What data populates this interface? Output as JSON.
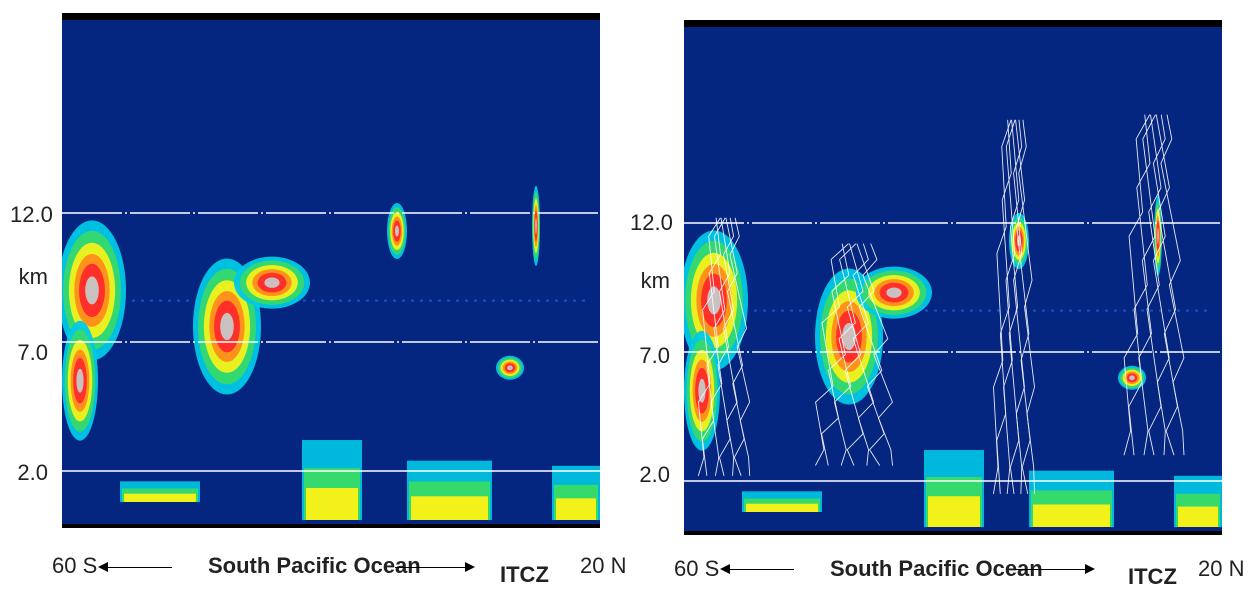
{
  "chart_data": [
    {
      "type": "heatmap",
      "panel": "left",
      "ylabel": "km",
      "y_ticks": [
        "12.0",
        "7.0",
        "2.0"
      ],
      "y_tick_values": [
        12.0,
        7.0,
        2.0
      ],
      "xaxis": {
        "left": "60 S",
        "middle": "South Pacific Ocean",
        "itcz": "ITCZ",
        "right": "20 N"
      },
      "grid": true,
      "overlay_contours": false
    },
    {
      "type": "heatmap",
      "panel": "right",
      "ylabel": "km",
      "y_ticks": [
        "12.0",
        "7.0",
        "2.0"
      ],
      "y_tick_values": [
        12.0,
        7.0,
        2.0
      ],
      "xaxis": {
        "left": "60 S",
        "middle": "South Pacific Ocean",
        "itcz": "ITCZ",
        "right": "20 N"
      },
      "grid": true,
      "overlay_contours": true
    }
  ],
  "colors": {
    "background": "#052680",
    "palette": [
      "#1e5bd8",
      "#00c8e6",
      "#36d96b",
      "#f2f21a",
      "#ff8c1a",
      "#ff2a2a",
      "#c8c8c8"
    ],
    "contour": "#ffffff"
  }
}
